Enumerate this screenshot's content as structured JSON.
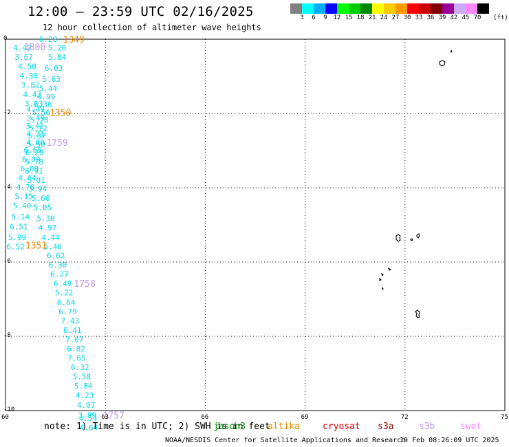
{
  "header": {
    "title": "12:00 – 23:59 UTC 02/16/2025",
    "subtitle": "12 hour collection of altimeter wave heights"
  },
  "color_scale": {
    "unit": "(ft)",
    "swatches": [
      "#808080",
      "#00ffff",
      "#00b0ff",
      "#0000ff",
      "#00ff00",
      "#00cc00",
      "#008800",
      "#ffff00",
      "#ffcc00",
      "#ff9900",
      "#ff0000",
      "#cc0000",
      "#800000",
      "#990099",
      "#ccaaff",
      "#ff88ff",
      "#000000"
    ],
    "labels": [
      "3",
      "6",
      "9",
      "12",
      "15",
      "18",
      "21",
      "24",
      "27",
      "30",
      "33",
      "36",
      "39",
      "42",
      "45",
      "70"
    ]
  },
  "axes": {
    "y_ticks": [
      "0",
      "-2",
      "-4",
      "-6",
      "-8",
      "-10"
    ],
    "x_ticks": [
      "60",
      "63",
      "66",
      "69",
      "72",
      "75"
    ]
  },
  "chart_data": {
    "type": "scatter",
    "title": "12:00 – 23:59 UTC 02/16/2025",
    "subtitle": "12 hour collection of altimeter wave heights",
    "xlabel": "",
    "ylabel": "",
    "xlim": [
      60,
      75
    ],
    "ylim": [
      -10,
      0
    ],
    "grid": true,
    "units": "ft",
    "series": [
      {
        "name": "jason3",
        "color": "#00d8e8",
        "points": [
          {
            "x": 61.28,
            "y": 0.0,
            "v": "6.28"
          },
          {
            "x": 61.55,
            "y": -0.23,
            "v": "5.20"
          },
          {
            "x": 61.55,
            "y": -0.48,
            "v": "5.84"
          },
          {
            "x": 61.45,
            "y": -0.78,
            "v": "6.03"
          },
          {
            "x": 61.38,
            "y": -1.07,
            "v": "5.63"
          },
          {
            "x": 61.28,
            "y": -1.32,
            "v": "5.44"
          },
          {
            "x": 61.22,
            "y": -1.55,
            "v": "4.99"
          },
          {
            "x": 61.12,
            "y": -1.75,
            "v": "6.36"
          },
          {
            "x": 61.07,
            "y": -1.97,
            "v": "5.56"
          },
          {
            "x": 61.02,
            "y": -2.18,
            "v": "5.28"
          },
          {
            "x": 60.98,
            "y": -2.4,
            "v": "5.12"
          },
          {
            "x": 60.94,
            "y": -2.6,
            "v": "5.37"
          },
          {
            "x": 60.92,
            "y": -2.82,
            "v": "5.50"
          },
          {
            "x": 60.87,
            "y": -3.05,
            "v": "6.29"
          },
          {
            "x": 60.86,
            "y": -3.3,
            "v": "5.78"
          },
          {
            "x": 60.86,
            "y": -3.55,
            "v": "6.91"
          },
          {
            "x": 60.92,
            "y": -3.8,
            "v": "5.01"
          },
          {
            "x": 60.97,
            "y": -4.03,
            "v": "3.94"
          },
          {
            "x": 61.06,
            "y": -4.28,
            "v": "5.66"
          },
          {
            "x": 61.11,
            "y": -4.53,
            "v": "5.05"
          },
          {
            "x": 61.21,
            "y": -4.82,
            "v": "5.30"
          },
          {
            "x": 61.26,
            "y": -5.07,
            "v": "4.97"
          },
          {
            "x": 61.36,
            "y": -5.33,
            "v": "4.44"
          },
          {
            "x": 61.42,
            "y": -5.58,
            "v": "5.46"
          },
          {
            "x": 61.51,
            "y": -5.82,
            "v": "6.62"
          },
          {
            "x": 61.57,
            "y": -6.07,
            "v": "6.30"
          },
          {
            "x": 61.62,
            "y": -6.32,
            "v": "6.27"
          },
          {
            "x": 61.72,
            "y": -6.57,
            "v": "6.49"
          },
          {
            "x": 61.76,
            "y": -6.82,
            "v": "5.22"
          },
          {
            "x": 61.82,
            "y": -7.08,
            "v": "6.64"
          },
          {
            "x": 61.87,
            "y": -7.33,
            "v": "6.79"
          },
          {
            "x": 61.94,
            "y": -7.58,
            "v": "7.43"
          },
          {
            "x": 62.01,
            "y": -7.83,
            "v": "6.41"
          },
          {
            "x": 62.07,
            "y": -8.08,
            "v": "7.07"
          },
          {
            "x": 62.12,
            "y": -8.33,
            "v": "6.82"
          },
          {
            "x": 62.14,
            "y": -8.58,
            "v": "7.65"
          },
          {
            "x": 62.24,
            "y": -8.83,
            "v": "6.32"
          },
          {
            "x": 62.29,
            "y": -9.08,
            "v": "5.58"
          },
          {
            "x": 62.34,
            "y": -9.33,
            "v": "5.84"
          },
          {
            "x": 62.38,
            "y": -9.58,
            "v": "4.23"
          },
          {
            "x": 62.42,
            "y": -9.85,
            "v": "4.07"
          },
          {
            "x": 62.45,
            "y": -10.12,
            "v": "3.89"
          },
          {
            "x": 62.48,
            "y": -10.2,
            "v": "4.54"
          },
          {
            "x": 62.5,
            "y": -10.45,
            "v": "4.64"
          }
        ]
      },
      {
        "name": "jason3-west",
        "color": "#00d8e8",
        "points": [
          {
            "x": 60.5,
            "y": -0.23,
            "v": "4.42"
          },
          {
            "x": 60.55,
            "y": -0.48,
            "v": "3.67"
          },
          {
            "x": 60.65,
            "y": -0.73,
            "v": "4.50"
          },
          {
            "x": 60.7,
            "y": -0.98,
            "v": "4.38"
          },
          {
            "x": 60.75,
            "y": -1.23,
            "v": "3.82"
          },
          {
            "x": 60.8,
            "y": -1.48,
            "v": "4.43"
          },
          {
            "x": 60.85,
            "y": -1.73,
            "v": "3.23"
          },
          {
            "x": 60.9,
            "y": -1.88,
            "v": "4.49"
          },
          {
            "x": 60.91,
            "y": -2.12,
            "v": "3.49"
          },
          {
            "x": 60.88,
            "y": -2.33,
            "v": "3.41"
          },
          {
            "x": 60.9,
            "y": -2.55,
            "v": "4.21"
          },
          {
            "x": 60.9,
            "y": -2.78,
            "v": "4.80"
          },
          {
            "x": 60.82,
            "y": -2.98,
            "v": "6.65"
          },
          {
            "x": 60.77,
            "y": -3.23,
            "v": "6.09"
          },
          {
            "x": 60.72,
            "y": -3.48,
            "v": "6.09"
          },
          {
            "x": 60.65,
            "y": -3.73,
            "v": "4.44"
          },
          {
            "x": 60.6,
            "y": -3.98,
            "v": "4.70"
          },
          {
            "x": 60.55,
            "y": -4.23,
            "v": "5.15"
          },
          {
            "x": 60.5,
            "y": -4.48,
            "v": "5.40"
          },
          {
            "x": 60.45,
            "y": -4.78,
            "v": "5.14"
          },
          {
            "x": 60.4,
            "y": -5.05,
            "v": "6.51"
          },
          {
            "x": 60.35,
            "y": -5.33,
            "v": "5.99"
          },
          {
            "x": 60.3,
            "y": -5.58,
            "v": "6.52"
          }
        ]
      }
    ],
    "time_labels": [
      {
        "text": "1349",
        "color": "#ee8800",
        "x": 62.05,
        "y": 0.0
      },
      {
        "text": "1800",
        "color": "#bb99ee",
        "x": 60.88,
        "y": -0.2
      },
      {
        "text": "1350",
        "color": "#ee8800",
        "x": 61.65,
        "y": -1.97
      },
      {
        "text": "1759",
        "color": "#bb99ee",
        "x": 61.55,
        "y": -2.78
      },
      {
        "text": "1351",
        "color": "#ee8800",
        "x": 60.92,
        "y": -5.55
      },
      {
        "text": "1758",
        "color": "#bb99ee",
        "x": 62.38,
        "y": -6.57
      },
      {
        "text": "1757",
        "color": "#bb99ee",
        "x": 63.25,
        "y": -10.12
      }
    ]
  },
  "islands": {
    "color": "#000000"
  },
  "footer": {
    "note": "note:  1) Time is in UTC; 2) SWH is in feet",
    "legend": [
      {
        "name": "jason3",
        "color": "#008800"
      },
      {
        "name": "altika",
        "color": "#ee8800"
      },
      {
        "name": "cryosat",
        "color": "#dd0000"
      },
      {
        "name": "s3a",
        "color": "#990000"
      },
      {
        "name": "s3b",
        "color": "#bb99ee"
      },
      {
        "name": "swot",
        "color": "#ee88ee"
      }
    ],
    "credit": "NOAA/NESDIS Center for Satellite Applications and Research",
    "timestamp": "19 Feb 08:26:09 UTC 2025"
  }
}
